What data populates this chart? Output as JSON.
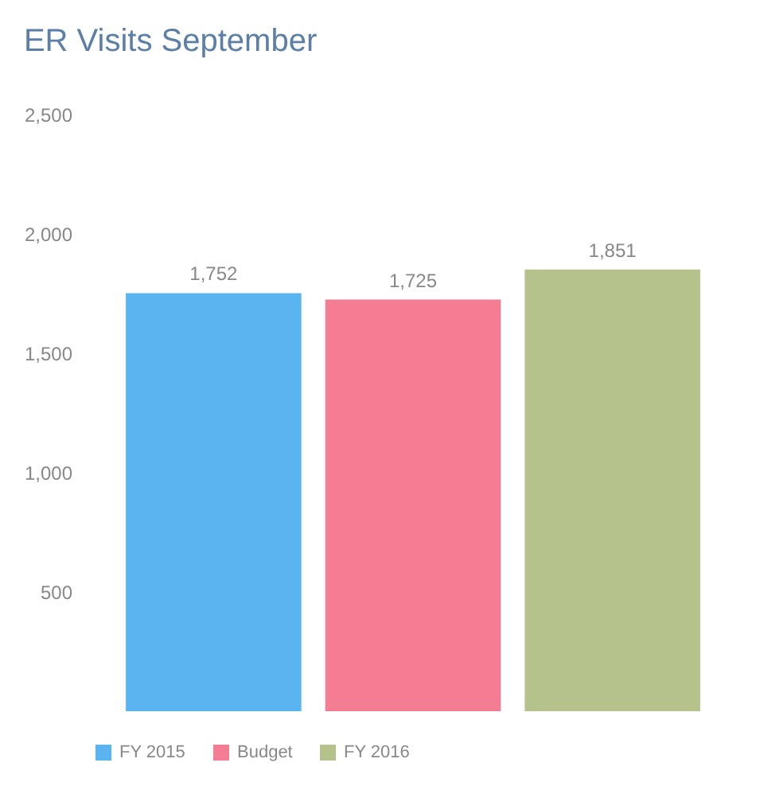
{
  "chart_data": {
    "type": "bar",
    "title": "ER Visits September",
    "categories": [
      null
    ],
    "series": [
      {
        "name": "FY 2015",
        "color": "#5ab4f0",
        "values": [
          1752
        ],
        "value_labels": [
          "1,752"
        ]
      },
      {
        "name": "Budget",
        "color": "#f57d93",
        "values": [
          1725
        ],
        "value_labels": [
          "1,725"
        ]
      },
      {
        "name": "FY 2016",
        "color": "#b5c28c",
        "values": [
          1851
        ],
        "value_labels": [
          "1,851"
        ]
      }
    ],
    "ylim": [
      0,
      2500
    ],
    "yticks": [
      {
        "value": 500,
        "label": "500"
      },
      {
        "value": 1000,
        "label": "1,000"
      },
      {
        "value": 1500,
        "label": "1,500"
      },
      {
        "value": 2000,
        "label": "2,000"
      },
      {
        "value": 2500,
        "label": "2,500"
      }
    ],
    "grid": false,
    "legend": "bottom"
  }
}
